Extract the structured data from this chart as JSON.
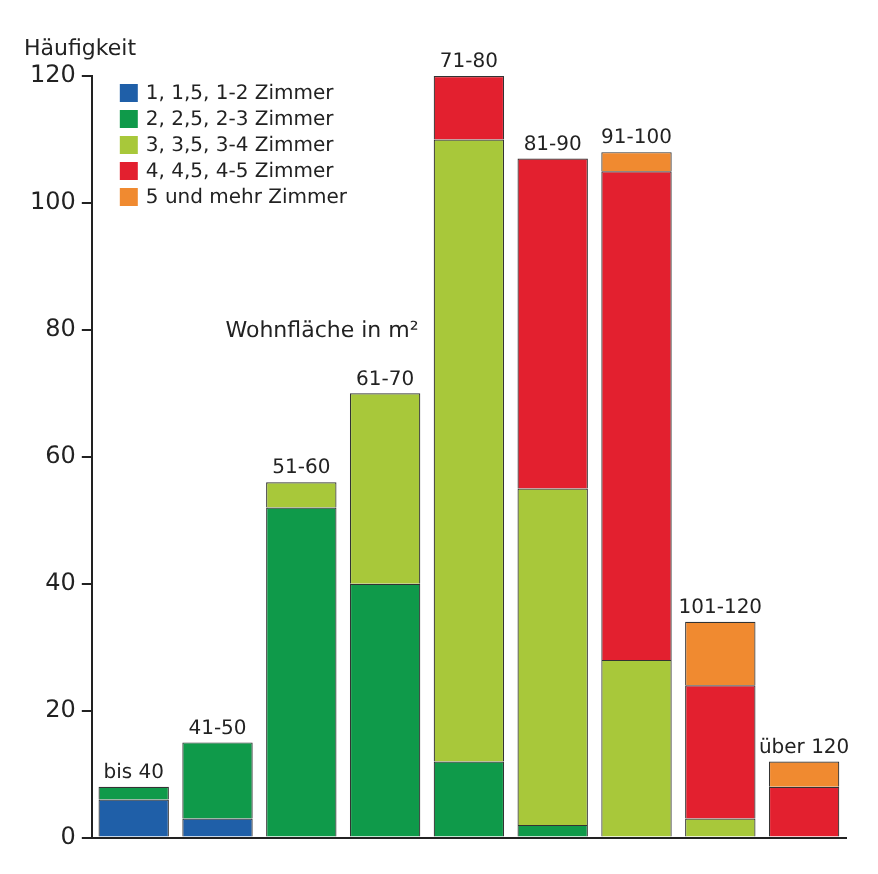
{
  "chart_data": {
    "type": "bar",
    "ylabel": "Häufigkeit",
    "stacked": true,
    "legend": "top left",
    "tick_labels": "y",
    "grid": false,
    "annotations": [
      "Wohnfläche in m²"
    ],
    "categories": [
      "bis 40",
      "41-50",
      "51-60",
      "61-70",
      "71-80",
      "81-90",
      "91-100",
      "101-120",
      "über 120"
    ],
    "ylim": [
      0,
      120
    ],
    "yticks": [
      0,
      20,
      40,
      60,
      80,
      100,
      120
    ],
    "series": [
      {
        "name": "1, 1,5, 1-2 Zimmer",
        "color": "#1f5fa8",
        "values": [
          6,
          3,
          0,
          0,
          0,
          0,
          0,
          0,
          0
        ]
      },
      {
        "name": "2, 2,5, 2-3 Zimmer",
        "color": "#0f9a4a",
        "values": [
          2,
          12,
          52,
          40,
          12,
          2,
          0,
          0,
          0
        ]
      },
      {
        "name": "3, 3,5, 3-4 Zimmer",
        "color": "#a8c83a",
        "values": [
          0,
          0,
          4,
          30,
          98,
          53,
          28,
          3,
          0
        ]
      },
      {
        "name": "4, 4,5, 4-5 Zimmer",
        "color": "#e3202f",
        "values": [
          0,
          0,
          0,
          0,
          10,
          52,
          77,
          21,
          8
        ]
      },
      {
        "name": "5 und mehr Zimmer",
        "color": "#f08a30",
        "values": [
          0,
          0,
          0,
          0,
          0,
          0,
          3,
          10,
          4
        ]
      }
    ]
  }
}
